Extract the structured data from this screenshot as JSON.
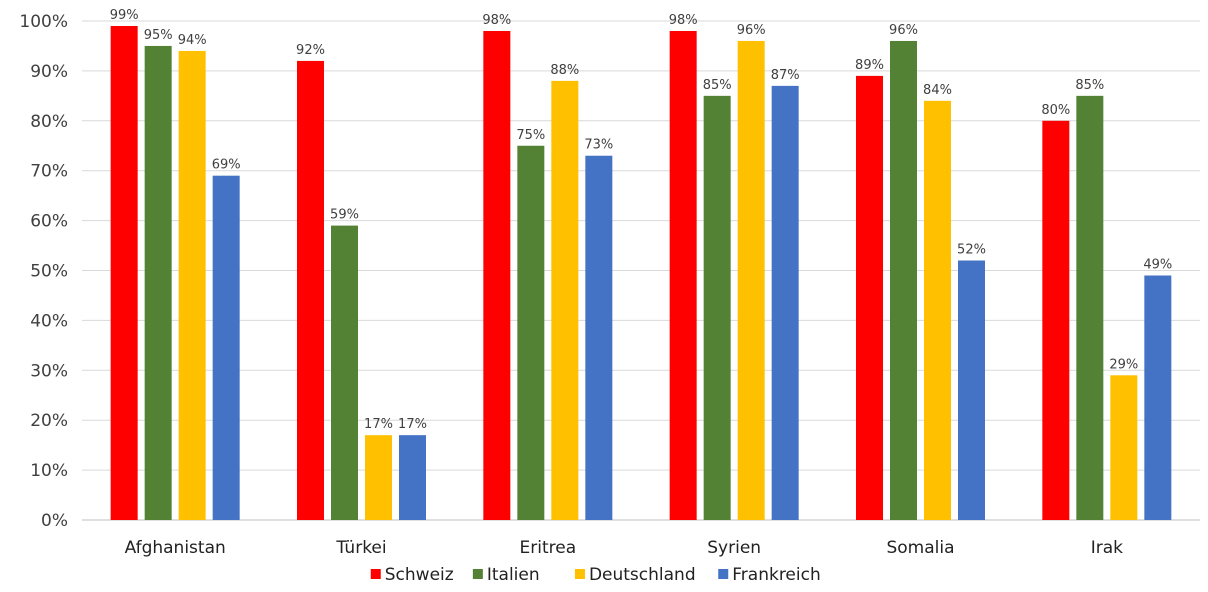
{
  "chart_data": {
    "type": "bar",
    "title": "",
    "xlabel": "",
    "ylabel": "",
    "ylim": [
      0,
      100
    ],
    "y_unit": "%",
    "y_ticks": [
      "0%",
      "10%",
      "20%",
      "30%",
      "40%",
      "50%",
      "60%",
      "70%",
      "80%",
      "90%",
      "100%"
    ],
    "grid": true,
    "legend_position": "bottom",
    "categories": [
      "Afghanistan",
      "Türkei",
      "Eritrea",
      "Syrien",
      "Somalia",
      "Irak"
    ],
    "series": [
      {
        "name": "Schweiz",
        "color": "#ff0000",
        "values": [
          99,
          92,
          98,
          98,
          89,
          80
        ],
        "labels": [
          "99%",
          "92%",
          "98%",
          "98%",
          "89%",
          "80%"
        ]
      },
      {
        "name": "Italien",
        "color": "#548235",
        "values": [
          95,
          59,
          75,
          85,
          96,
          85
        ],
        "labels": [
          "95%",
          "59%",
          "75%",
          "85%",
          "96%",
          "85%"
        ]
      },
      {
        "name": "Deutschland",
        "color": "#ffc000",
        "values": [
          94,
          17,
          88,
          96,
          84,
          29
        ],
        "labels": [
          "94%",
          "17%",
          "88%",
          "96%",
          "84%",
          "29%"
        ]
      },
      {
        "name": "Frankreich",
        "color": "#4472c4",
        "values": [
          69,
          17,
          73,
          87,
          52,
          49
        ],
        "labels": [
          "69%",
          "17%",
          "73%",
          "87%",
          "52%",
          "49%"
        ]
      }
    ]
  }
}
